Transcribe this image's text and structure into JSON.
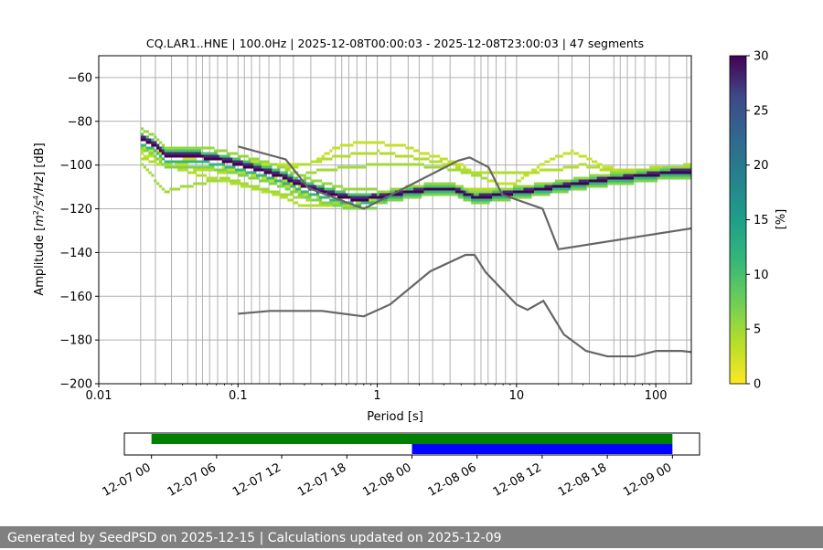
{
  "chart_data": [
    {
      "type": "heatmap",
      "title": "CQ.LAR1..HNE | 100.0Hz | 2025-12-08T00:00:03 - 2025-12-08T23:00:03 | 47 segments",
      "xlabel": "Period [s]",
      "ylabel_parts": [
        "Amplitude [",
        "m",
        "2",
        "/s",
        "4",
        "/Hz",
        "] [dB]"
      ],
      "x_scale": "log",
      "xlim": [
        0.01,
        180
      ],
      "ylim": [
        -200,
        -50
      ],
      "x_ticks": [
        {
          "v": 0.01,
          "label": "0.01"
        },
        {
          "v": 0.1,
          "label": "0.1"
        },
        {
          "v": 1,
          "label": "1"
        },
        {
          "v": 10,
          "label": "10"
        },
        {
          "v": 100,
          "label": "100"
        }
      ],
      "y_ticks": [
        {
          "v": -200,
          "label": "−200"
        },
        {
          "v": -180,
          "label": "−180"
        },
        {
          "v": -160,
          "label": "−160"
        },
        {
          "v": -140,
          "label": "−140"
        },
        {
          "v": -120,
          "label": "−120"
        },
        {
          "v": -100,
          "label": "−100"
        },
        {
          "v": -80,
          "label": "−80"
        },
        {
          "v": -60,
          "label": "−60"
        }
      ],
      "grid_periods": [
        0.02,
        0.0255,
        0.0333,
        0.0435,
        0.05,
        0.0556,
        0.0625,
        0.0714,
        0.0833,
        0.1,
        0.1111,
        0.125,
        0.1429,
        0.1667,
        0.2,
        0.25,
        0.3333,
        0.5,
        0.5556,
        0.625,
        0.7143,
        0.8333,
        1.0,
        1.25,
        1.6667,
        2.0,
        2.5,
        3.3333,
        5.0,
        5.5556,
        6.25,
        7.1429,
        8.3333,
        10.0,
        20.0,
        25.0,
        33.333,
        50.0,
        55.556,
        62.5,
        71.429,
        83.333,
        100.0,
        125.0,
        166.67
      ],
      "colorbar": {
        "label": "[%]",
        "min": 0,
        "max": 30,
        "ticks": [
          "0",
          "5",
          "10",
          "15",
          "20",
          "25",
          "30"
        ],
        "colormap": "viridis_r"
      },
      "dominant_curve": {
        "name": "mode",
        "x": [
          0.02,
          0.025,
          0.03,
          0.05,
          0.08,
          0.12,
          0.2,
          0.3,
          0.5,
          0.7,
          1.0,
          1.5,
          2.5,
          3.5,
          5.0,
          7.0,
          9.0,
          12.0,
          20.0,
          40.0,
          80.0,
          150.0,
          180.0
        ],
        "y": [
          -88,
          -91,
          -96,
          -96,
          -98,
          -101,
          -105,
          -110,
          -114,
          -116,
          -115,
          -113,
          -111,
          -111,
          -115,
          -114,
          -113,
          -112,
          -110,
          -107,
          -105,
          -103,
          -103
        ]
      },
      "spread_curves": [
        {
          "name": "high-variant-1",
          "x": [
            0.02,
            0.05,
            0.1,
            0.2,
            0.35,
            0.5,
            0.7,
            1.0,
            1.5,
            2.0,
            3.0,
            4.0,
            5.0,
            7.0,
            10.0,
            15.0,
            20.0,
            25.0,
            30.0,
            40.0,
            60.0,
            100.0,
            180.0
          ],
          "y": [
            -93,
            -96,
            -98,
            -100,
            -99,
            -92,
            -90,
            -90,
            -91,
            -94,
            -97,
            -100,
            -104,
            -108,
            -108,
            -100,
            -96,
            -94,
            -96,
            -100,
            -103,
            -103,
            -101
          ]
        },
        {
          "name": "high-variant-2",
          "x": [
            0.03,
            0.1,
            0.3,
            0.5,
            1.0,
            2.0,
            3.5,
            5.0,
            10.0,
            20.0,
            30.0,
            50.0,
            180.0
          ],
          "y": [
            -100,
            -104,
            -100,
            -96,
            -94,
            -97,
            -100,
            -104,
            -104,
            -102,
            -100,
            -103,
            -100
          ]
        },
        {
          "name": "low-variant-1",
          "x": [
            0.02,
            0.03,
            0.08,
            0.2,
            0.4,
            0.7,
            1.0,
            2.0,
            3.5,
            5.0,
            10.0,
            20.0,
            50.0,
            180.0
          ],
          "y": [
            -99,
            -112,
            -106,
            -113,
            -117,
            -118,
            -116,
            -114,
            -113,
            -115,
            -113,
            -111,
            -108,
            -104
          ]
        },
        {
          "name": "low-variant-2",
          "x": [
            0.02,
            0.04,
            0.1,
            0.2,
            0.4,
            0.7,
            1.0,
            2.0,
            5.0,
            10.0,
            30.0,
            180.0
          ],
          "y": [
            -95,
            -100,
            -103,
            -107,
            -112,
            -115,
            -114,
            -112,
            -113,
            -112,
            -108,
            -102
          ]
        },
        {
          "name": "low-variant-3",
          "x": [
            0.02,
            0.05,
            0.1,
            0.2,
            0.3,
            0.5,
            1.0,
            2.0,
            5.0,
            10.0,
            40.0,
            180.0
          ],
          "y": [
            -97,
            -104,
            -109,
            -114,
            -119,
            -119,
            -117,
            -112,
            -111,
            -112,
            -106,
            -101
          ]
        },
        {
          "name": "high-variant-3",
          "x": [
            0.2,
            0.35,
            0.6,
            1.0,
            2.0,
            3.5,
            6.0
          ],
          "y": [
            -108,
            -103,
            -101,
            -100,
            -100,
            -102,
            -106
          ]
        },
        {
          "name": "mid-variant-1",
          "x": [
            0.02,
            0.05,
            0.1,
            0.2,
            0.3,
            0.6,
            1.0,
            2.0,
            4.0,
            10.0,
            20.0,
            50.0,
            180.0
          ],
          "y": [
            -92,
            -98,
            -102,
            -108,
            -113,
            -117,
            -115,
            -112,
            -112,
            -112,
            -109,
            -105,
            -102
          ]
        }
      ],
      "reference_lines": [
        {
          "name": "NHNM",
          "x": [
            0.1,
            0.22,
            0.32,
            0.8,
            3.8,
            4.6,
            6.3,
            7.9,
            15.4,
            20.0,
            354.8
          ],
          "y": [
            -91.5,
            -97.4,
            -110.5,
            -120.0,
            -98.0,
            -96.5,
            -101.0,
            -113.5,
            -120.0,
            -138.5,
            -126.0
          ]
        },
        {
          "name": "NLNM",
          "x": [
            0.1,
            0.17,
            0.4,
            0.8,
            1.24,
            2.4,
            4.3,
            5.0,
            6.0,
            10.0,
            12.0,
            15.6,
            21.9,
            31.6,
            45.0,
            70.0,
            101.0,
            154.0,
            328.0
          ],
          "y": [
            -168.0,
            -166.7,
            -166.7,
            -169.2,
            -163.7,
            -148.6,
            -141.1,
            -141.1,
            -149.0,
            -163.8,
            -166.2,
            -162.1,
            -177.5,
            -185.0,
            -187.5,
            -187.5,
            -185.0,
            -185.0,
            -187.5
          ]
        }
      ]
    },
    {
      "type": "bar",
      "title": "",
      "x_ticks": [
        "12-07 00",
        "12-07 06",
        "12-07 12",
        "12-07 18",
        "12-08 00",
        "12-08 06",
        "12-08 12",
        "12-08 18",
        "12-09 00"
      ],
      "x_range_hours": [
        -2.5,
        50.5
      ],
      "bars": [
        {
          "name": "available data",
          "color": "#008000",
          "start_hour": 0,
          "end_hour": 48
        },
        {
          "name": "selected period",
          "color": "#0000ff",
          "start_hour": 24,
          "end_hour": 48
        }
      ]
    }
  ],
  "footer": {
    "text": "Generated by SeedPSD on 2025-12-15 | Calculations updated on 2025-12-09"
  }
}
